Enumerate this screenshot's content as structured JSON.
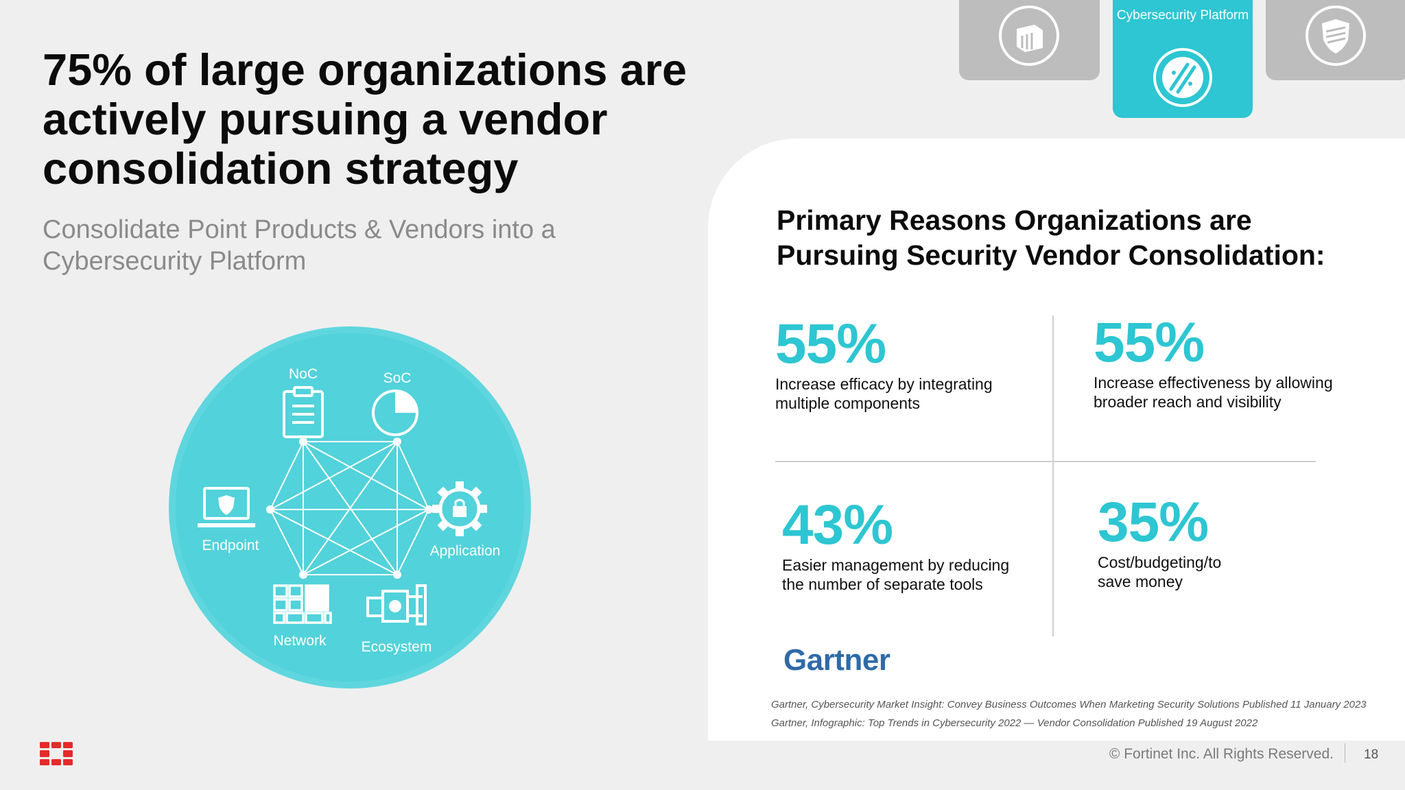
{
  "slide": {
    "headline": "75% of large organizations are actively pursuing a vendor consolidation strategy",
    "subhead": "Consolidate Point Products & Vendors into a Cybersecurity Platform",
    "page_number": "18",
    "copyright": "© Fortinet Inc. All Rights Reserved."
  },
  "tabs": [
    {
      "label": "",
      "icon": "network-icon",
      "active": false
    },
    {
      "label": "Cybersecurity Platform",
      "icon": "cybersecurity-platform-icon",
      "active": true
    },
    {
      "label": "",
      "icon": "shield-icon",
      "active": false
    }
  ],
  "diagram": {
    "noc": "NoC",
    "soc": "SoC",
    "endpoint": "Endpoint",
    "application": "Application",
    "network": "Network",
    "ecosystem": "Ecosystem",
    "color": "#2dc6d2"
  },
  "panel": {
    "title": "Primary Reasons Organizations are Pursuing Security Vendor Consolidation:",
    "stats": [
      {
        "value": "55%",
        "text": "Increase efficacy by integrating multiple components"
      },
      {
        "value": "55%",
        "text": "Increase effectiveness by allowing broader reach and visibility"
      },
      {
        "value": "43%",
        "text": "Easier management by reducing the number of separate tools"
      },
      {
        "value": "35%",
        "text": "Cost/budgeting/to save money"
      }
    ],
    "brand": "Gartner",
    "sources": [
      "Gartner, Cybersecurity Market Insight: Convey Business Outcomes When Marketing Security Solutions Published 11 January 2023",
      "Gartner, Infographic: Top Trends in Cybersecurity 2022 — Vendor Consolidation Published 19 August 2022"
    ]
  },
  "colors": {
    "accent": "#2dc6d2",
    "tab_inactive": "#bdbdbd",
    "logo": "#e52a2a",
    "gartner": "#2f6aa8"
  }
}
